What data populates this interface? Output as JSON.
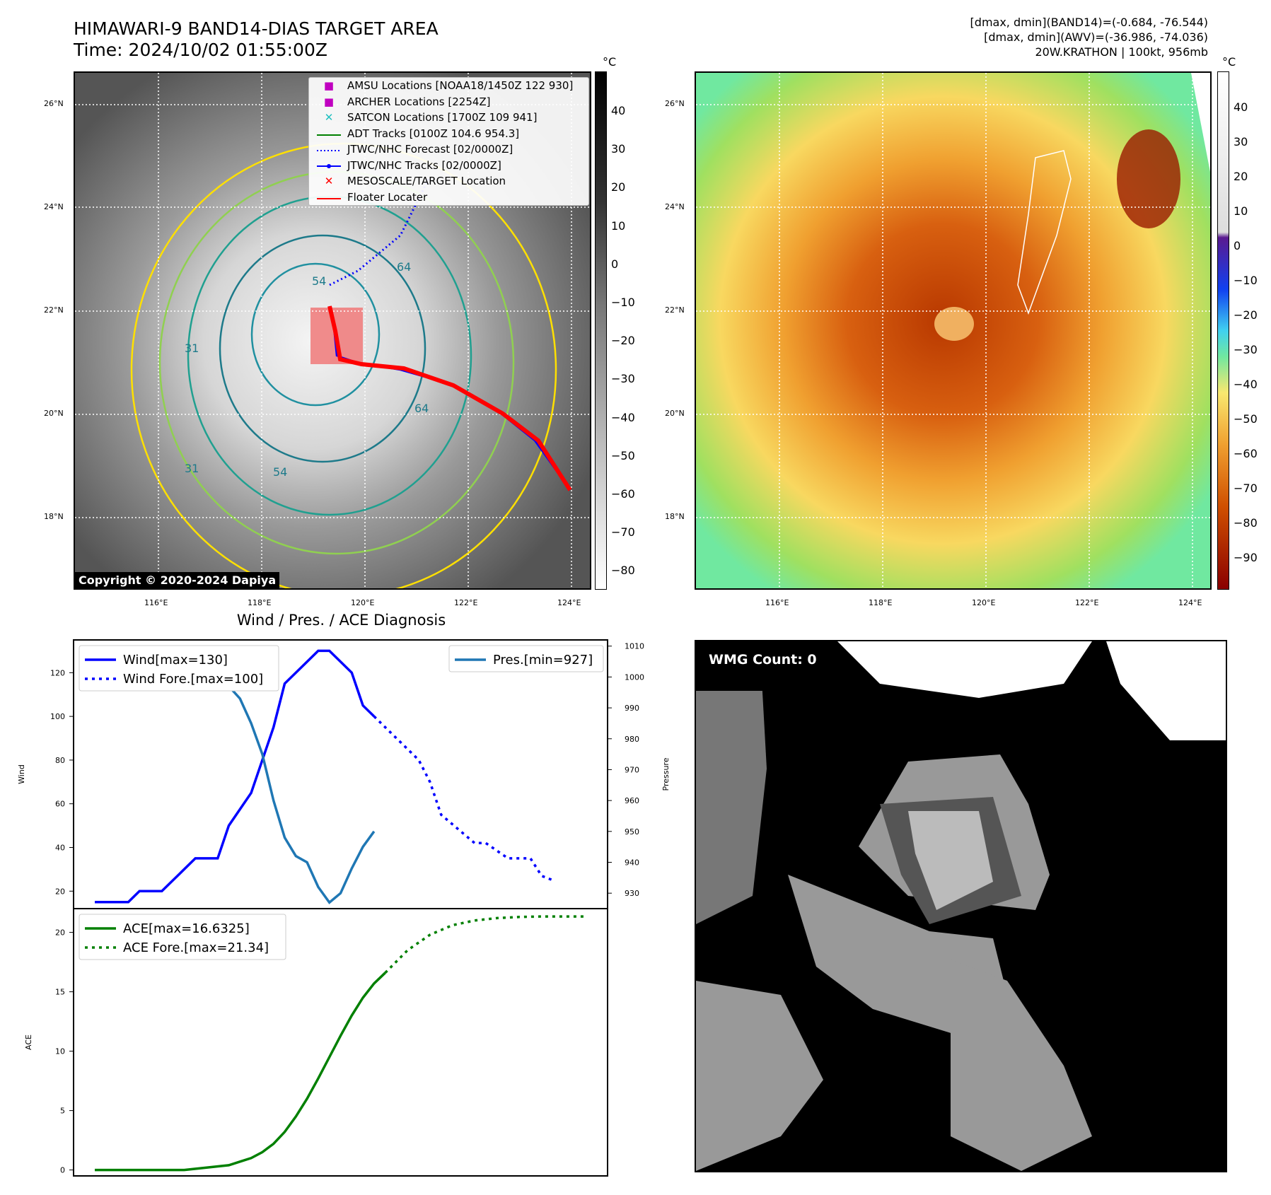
{
  "header": {
    "title_line1": "HIMAWARI-9 BAND14-DIAS TARGET AREA",
    "title_line2": "Time: 2024/10/02 01:55:00Z",
    "info_line1": "[dmax, dmin](BAND14)=(-0.684, -76.544)",
    "info_line2": "[dmax, dmin](AWV)=(-36.986, -74.036)",
    "info_line3": "20W.KRATHON | 100kt, 956mb"
  },
  "map": {
    "lat_labels": [
      "26°N",
      "24°N",
      "22°N",
      "20°N",
      "18°N"
    ],
    "lon_labels": [
      "116°E",
      "118°E",
      "120°E",
      "122°E",
      "124°E"
    ],
    "copyright": "Copyright © 2020-2024 Dapiya",
    "unit": "°C",
    "colorbar_left_ticks": [
      "40",
      "30",
      "20",
      "10",
      "0",
      "−10",
      "−20",
      "−30",
      "−40",
      "−50",
      "−60",
      "−70",
      "−80"
    ],
    "colorbar_right_ticks": [
      "40",
      "30",
      "20",
      "10",
      "0",
      "−10",
      "−20",
      "−30",
      "−40",
      "−50",
      "−60",
      "−70",
      "−80",
      "−90"
    ],
    "contour_labels": [
      "64",
      "54",
      "31",
      "31",
      "64",
      "54"
    ],
    "legend": [
      {
        "label": "AMSU Locations [NOAA18/1450Z 122 930]",
        "color": "#c000c0",
        "symbol": "square"
      },
      {
        "label": "ARCHER Locations [2254Z]",
        "color": "#c000c0",
        "symbol": "square"
      },
      {
        "label": "SATCON Locations [1700Z 109 941]",
        "color": "#20c0c0",
        "symbol": "x"
      },
      {
        "label": "ADT Tracks [0100Z 104.6 954.3]",
        "color": "#008000",
        "symbol": "line"
      },
      {
        "label": "JTWC/NHC Forecast [02/0000Z]",
        "color": "#0000ff",
        "symbol": "dotted"
      },
      {
        "label": "JTWC/NHC Tracks [02/0000Z]",
        "color": "#0000ff",
        "symbol": "line-dot"
      },
      {
        "label": "MESOSCALE/TARGET Location",
        "color": "#ff0000",
        "symbol": "x"
      },
      {
        "label": "Floater Locater",
        "color": "#ff0000",
        "symbol": "line"
      }
    ]
  },
  "wmg": {
    "label": "WMG Count: 0"
  },
  "chart_data": [
    {
      "type": "line",
      "title": "Wind / Pres. / ACE Diagnosis",
      "ylabel": "Wind",
      "y2label": "Pressure",
      "ylim": [
        12,
        135
      ],
      "y2lim": [
        925,
        1012
      ],
      "yticks": [
        20,
        40,
        60,
        80,
        100,
        120
      ],
      "y2ticks": [
        930,
        940,
        950,
        960,
        970,
        980,
        990,
        1000,
        1010
      ],
      "xlim": [
        0,
        44
      ],
      "series": [
        {
          "name": "Wind[max=130]",
          "color": "#0000ff",
          "style": "solid",
          "x": [
            0,
            3,
            4,
            6,
            9,
            11,
            12,
            14,
            16,
            17,
            19,
            20,
            21,
            23,
            24,
            25,
            26,
            27
          ],
          "y": [
            15,
            15,
            20,
            20,
            35,
            35,
            50,
            65,
            95,
            115,
            125,
            130,
            130,
            120,
            105,
            100,
            null,
            null
          ]
        },
        {
          "name": "Wind Fore.[max=100]",
          "color": "#0000ff",
          "style": "dotted",
          "x": [
            25,
            29,
            30,
            31,
            34,
            35,
            37,
            38,
            39,
            40,
            41
          ],
          "y": [
            100,
            80,
            70,
            55,
            42,
            42,
            35,
            35,
            35,
            27,
            25
          ]
        },
        {
          "name": "Pres.[min=927]",
          "color": "#1f77b4",
          "style": "solid",
          "axis": "right",
          "x": [
            0,
            2,
            3,
            5,
            6,
            8,
            9,
            10,
            11,
            12,
            13,
            14,
            15,
            16,
            17,
            18,
            19,
            20,
            21,
            22,
            23,
            24,
            25
          ],
          "y": [
            1008,
            1008,
            1006,
            1004,
            1004,
            1002,
            1001,
            1000,
            998,
            997,
            993,
            985,
            975,
            960,
            948,
            942,
            940,
            932,
            927,
            930,
            938,
            945,
            950
          ]
        }
      ]
    },
    {
      "type": "line",
      "ylabel": "ACE",
      "ylim": [
        -0.5,
        22
      ],
      "yticks": [
        0,
        5,
        10,
        15,
        20
      ],
      "xlim": [
        0,
        44
      ],
      "series": [
        {
          "name": "ACE[max=16.6325]",
          "color": "#008000",
          "style": "solid",
          "x": [
            0,
            4,
            8,
            10,
            12,
            13,
            14,
            15,
            16,
            17,
            18,
            19,
            20,
            21,
            22,
            23,
            24,
            25,
            26
          ],
          "y": [
            0,
            0,
            0,
            0.2,
            0.4,
            0.7,
            1.0,
            1.5,
            2.2,
            3.2,
            4.5,
            6.0,
            7.7,
            9.5,
            11.3,
            13.0,
            14.5,
            15.7,
            16.6
          ]
        },
        {
          "name": "ACE Fore.[max=21.34]",
          "color": "#008000",
          "style": "dotted",
          "x": [
            26,
            28,
            30,
            32,
            34,
            36,
            38,
            40,
            42,
            44
          ],
          "y": [
            16.6,
            18.5,
            19.8,
            20.6,
            21.0,
            21.2,
            21.3,
            21.34,
            21.34,
            21.34
          ]
        }
      ]
    }
  ]
}
